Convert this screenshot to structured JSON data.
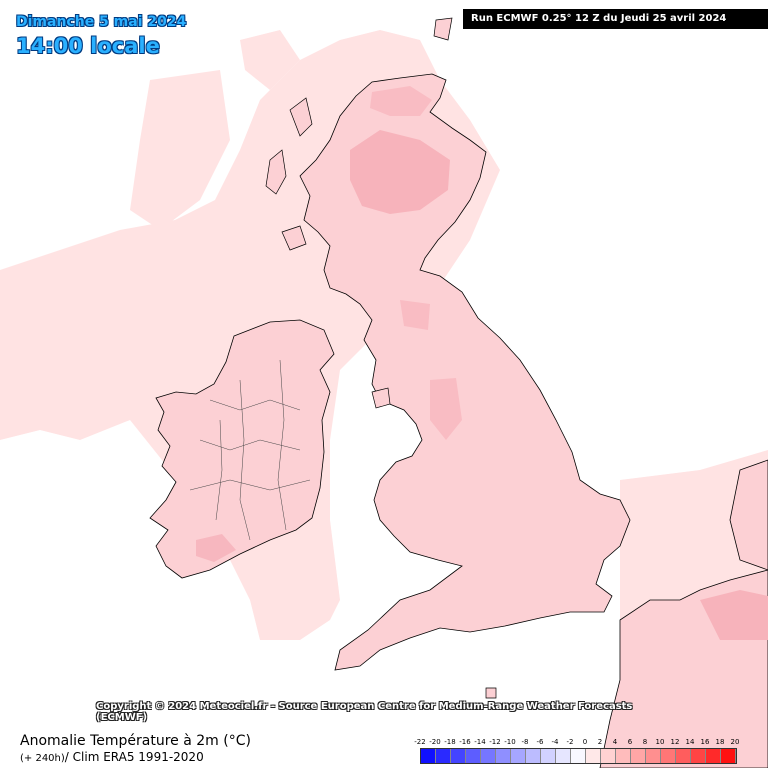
{
  "header": {
    "date": "Dimanche 5 mai 2024",
    "time": "14:00 locale",
    "run": "Run ECMWF 0.25° 12 Z du Jeudi 25 avril 2024"
  },
  "footer": {
    "copyright": "Copyright © 2024 Meteociel.fr - Source European Centre for Medium-Range Weather Forecasts (ECMWF)",
    "variable": "Anomalie Température à 2m (°C)",
    "lead": "(+ 240h)",
    "clim": "/ Clim ERA5 1991-2020"
  },
  "legend": {
    "ticks": [
      "-22",
      "-20",
      "-18",
      "-16",
      "-14",
      "-12",
      "-10",
      "-8",
      "-6",
      "-4",
      "-2",
      "0",
      "2",
      "4",
      "6",
      "8",
      "10",
      "12",
      "14",
      "16",
      "18",
      "20"
    ],
    "colors": [
      "#1010ff",
      "#2a2aff",
      "#4444ff",
      "#5d5dff",
      "#7676ff",
      "#8f8fff",
      "#a6a6ff",
      "#bcbcff",
      "#d2d2ff",
      "#e6e6ff",
      "#f8f8ff",
      "#ffe8e8",
      "#ffd2d2",
      "#ffbcbc",
      "#ffa6a6",
      "#ff8f8f",
      "#ff7676",
      "#ff5d5d",
      "#ff4444",
      "#ff2a2a",
      "#ff1010"
    ]
  },
  "palette": {
    "anomaly_light": "#ffe3e3",
    "anomaly_mid": "#fcc8cc",
    "anomaly_strong": "#f8b0b8",
    "coast": "#000000",
    "title_blue": "#2ab0ff"
  }
}
